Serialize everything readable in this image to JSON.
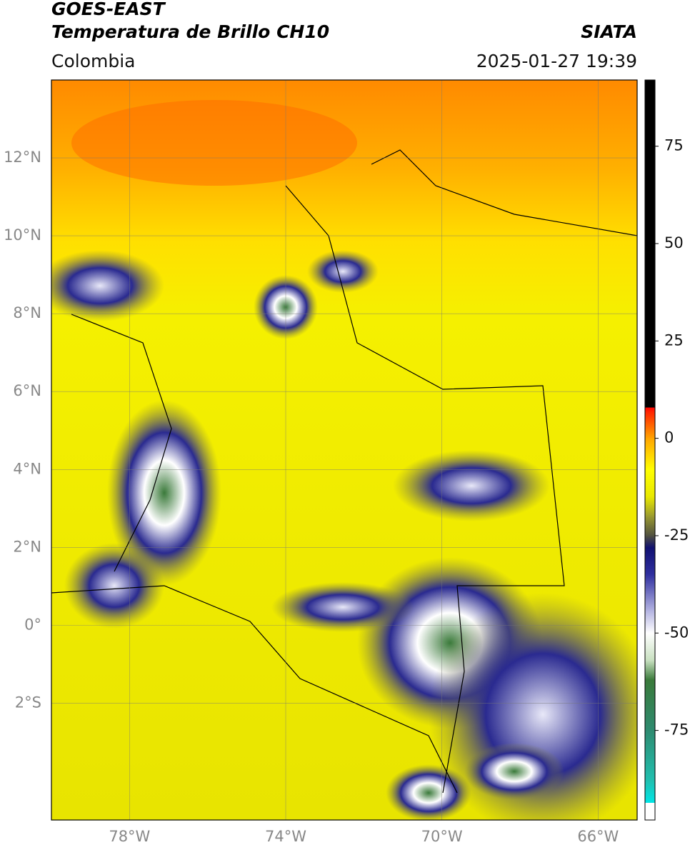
{
  "header": {
    "title": "GOES-EAST",
    "subtitle": "Temperatura de Brillo CH10",
    "agency": "SIATA",
    "region": "Colombia",
    "datetime": "2025-01-27 19:39"
  },
  "map": {
    "xlim": [
      -80,
      -65
    ],
    "ylim": [
      -5,
      14
    ],
    "xticks": [
      {
        "value": -78,
        "label": "78°W"
      },
      {
        "value": -74,
        "label": "74°W"
      },
      {
        "value": -70,
        "label": "70°W"
      },
      {
        "value": -66,
        "label": "66°W"
      }
    ],
    "yticks": [
      {
        "value": 12,
        "label": "12°N"
      },
      {
        "value": 10,
        "label": "10°N"
      },
      {
        "value": 8,
        "label": "8°N"
      },
      {
        "value": 6,
        "label": "6°N"
      },
      {
        "value": 4,
        "label": "4°N"
      },
      {
        "value": 2,
        "label": "2°N"
      },
      {
        "value": 0,
        "label": "0°"
      },
      {
        "value": -2,
        "label": "2°S"
      }
    ]
  },
  "colorbar": {
    "lim": [
      -98,
      92
    ],
    "ticks": [
      75,
      50,
      25,
      0,
      -25,
      -50,
      -75
    ],
    "stops": [
      {
        "value": -98,
        "color": "#ffffff"
      },
      {
        "value": -93.5,
        "color": "#ffffff"
      },
      {
        "value": -93.5,
        "color": "#00e5e5"
      },
      {
        "value": -88,
        "color": "#20c0b0"
      },
      {
        "value": -75,
        "color": "#2e8b70"
      },
      {
        "value": -62,
        "color": "#3a7a3a"
      },
      {
        "value": -57,
        "color": "#c8e0c0"
      },
      {
        "value": -50,
        "color": "#ffffff"
      },
      {
        "value": -44,
        "color": "#b0b0e0"
      },
      {
        "value": -35,
        "color": "#3030a0"
      },
      {
        "value": -28,
        "color": "#101070"
      },
      {
        "value": -25,
        "color": "#505040"
      },
      {
        "value": -20,
        "color": "#9a9a30"
      },
      {
        "value": -15,
        "color": "#e8e800"
      },
      {
        "value": -8,
        "color": "#ffff00"
      },
      {
        "value": 0,
        "color": "#ffa500"
      },
      {
        "value": 7,
        "color": "#ff2000"
      },
      {
        "value": 8,
        "color": "#ff0000"
      },
      {
        "value": 8,
        "color": "#000000"
      },
      {
        "value": 92,
        "color": "#000000"
      }
    ]
  }
}
